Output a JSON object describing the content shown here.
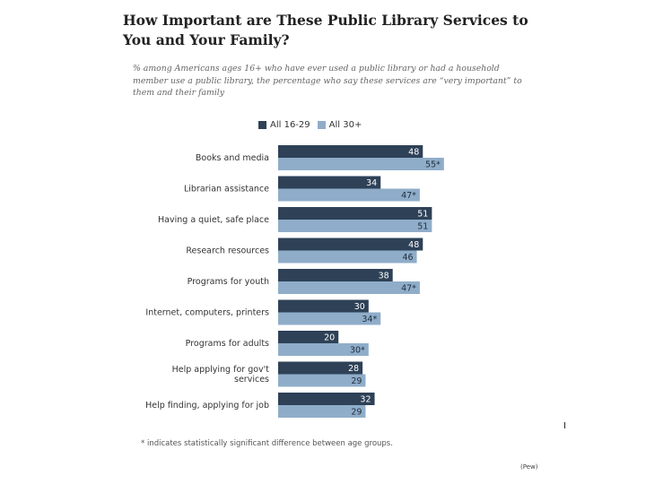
{
  "chart_data": {
    "type": "bar",
    "orientation": "horizontal",
    "title": "How Important are These Public Library Services to You and Your Family?",
    "subtitle": "% among Americans ages 16+ who have ever used a public library or had a household member use a public library, the percentage who say these services are “very important” to them and their family",
    "categories": [
      "Books and media",
      "Librarian assistance",
      "Having a quiet, safe place",
      "Research resources",
      "Programs for youth",
      "Internet, computers, printers",
      "Programs for adults",
      "Help applying for gov't services",
      "Help finding, applying for job"
    ],
    "series": [
      {
        "name": "All 16-29",
        "color": "#2e4157",
        "values": [
          48,
          34,
          51,
          48,
          38,
          30,
          20,
          28,
          32
        ],
        "labels": [
          "48",
          "34",
          "51",
          "48",
          "38",
          "30",
          "20",
          "28",
          "32"
        ]
      },
      {
        "name": "All 30+",
        "color": "#8fadc9",
        "values": [
          55,
          47,
          51,
          46,
          47,
          34,
          30,
          29,
          29
        ],
        "labels": [
          "55*",
          "47*",
          "51",
          "46",
          "47*",
          "34*",
          "30*",
          "29",
          "29"
        ]
      }
    ],
    "xlim": [
      0,
      100
    ],
    "xlabel": "",
    "ylabel": "",
    "legend_position": "top"
  },
  "footnote": "* indicates statistically significant difference between age groups.",
  "source": "(Pew)",
  "marker": "I"
}
